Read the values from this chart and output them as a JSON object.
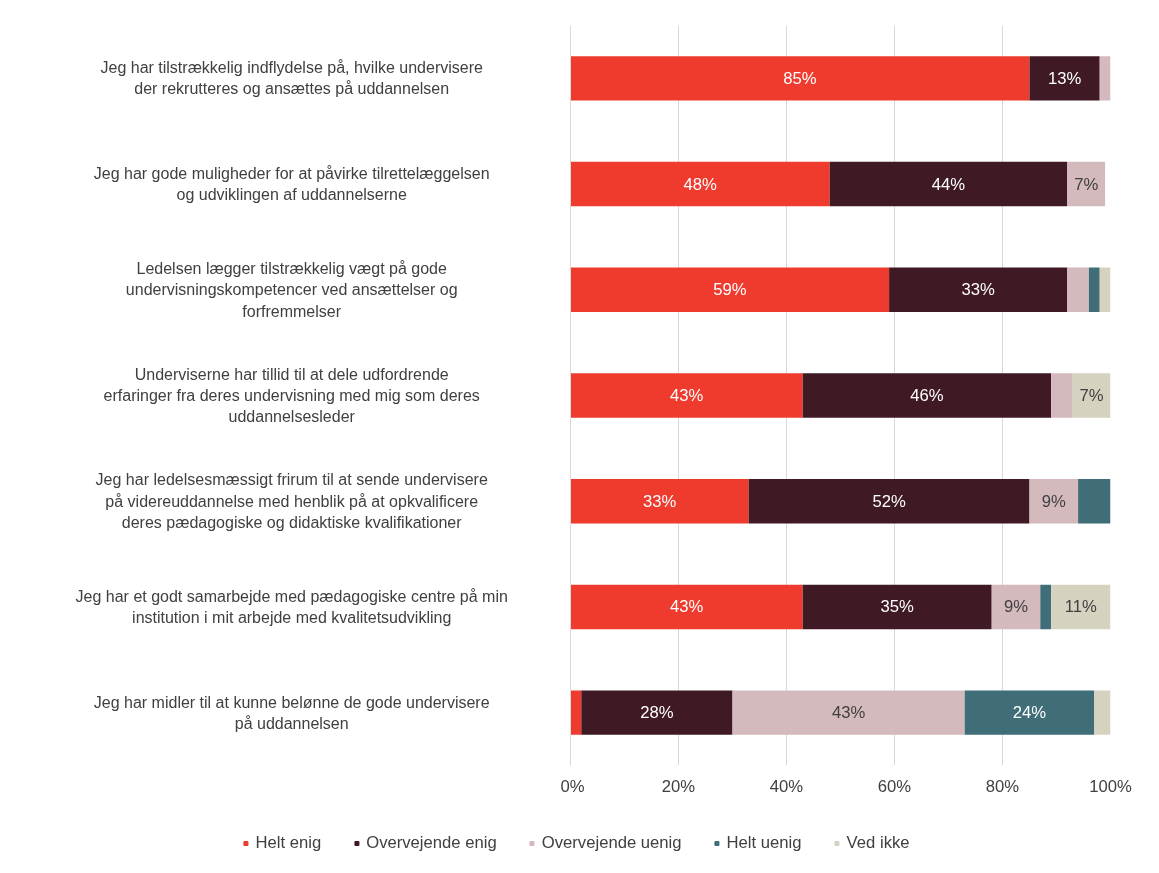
{
  "chart_data": {
    "type": "bar",
    "orientation": "horizontal",
    "stacked": true,
    "categories": [
      "Jeg har tilstrækkelig indflydelse på, hvilke undervisere der rekrutteres og ansættes på uddannelsen",
      "Jeg har gode muligheder for at påvirke tilrettelæggelsen og udviklingen af uddannelserne",
      "Ledelsen lægger tilstrækkelig vægt på gode undervisningskompetencer ved ansættelser og forfremmelser",
      "Underviserne har tillid til at dele udfordrende erfaringer fra deres undervisning med mig som deres uddannelsesleder",
      "Jeg har ledelsesmæssigt frirum til at sende undervisere på videreuddannelse med henblik på at opkvalificere deres pædagogiske og didaktiske kvalifikationer",
      "Jeg har et godt samarbejde med pædagogiske centre på min institution i mit arbejde med kvalitetsudvikling",
      "Jeg har midler til at kunne belønne de gode undervisere på uddannelsen"
    ],
    "series": [
      {
        "name": "Helt enig",
        "color": "#ee3b2e",
        "values": [
          85,
          48,
          59,
          43,
          33,
          43,
          2
        ],
        "value_labels": [
          "85%",
          "48%",
          "59%",
          "43%",
          "33%",
          "43%",
          null
        ]
      },
      {
        "name": "Overvejende enig",
        "color": "#3f1a24",
        "values": [
          13,
          44,
          33,
          46,
          52,
          35,
          28
        ],
        "value_labels": [
          "13%",
          "44%",
          "33%",
          "46%",
          "52%",
          "35%",
          "28%"
        ]
      },
      {
        "name": "Overvejende uenig",
        "color": "#d4b9bd",
        "values": [
          2,
          7,
          4,
          4,
          9,
          9,
          43
        ],
        "value_labels": [
          null,
          "7%",
          null,
          null,
          "9%",
          "9%",
          "43%"
        ]
      },
      {
        "name": "Helt uenig",
        "color": "#3f6e78",
        "values": [
          0,
          0,
          2,
          0,
          6,
          2,
          24
        ],
        "value_labels": [
          null,
          null,
          null,
          null,
          null,
          null,
          "24%"
        ]
      },
      {
        "name": "Ved ikke",
        "color": "#d5d2c0",
        "values": [
          0,
          0,
          2,
          7,
          0,
          11,
          3
        ],
        "value_labels": [
          null,
          null,
          null,
          "7%",
          null,
          "11%",
          null
        ]
      }
    ],
    "xlim": [
      0,
      100
    ],
    "xticks": [
      {
        "value": 0,
        "label": "0%"
      },
      {
        "value": 20,
        "label": "20%"
      },
      {
        "value": 40,
        "label": "40%"
      },
      {
        "value": 60,
        "label": "60%"
      },
      {
        "value": 80,
        "label": "80%"
      },
      {
        "value": 100,
        "label": "100%"
      }
    ],
    "grid": "x",
    "legend": "bottom"
  }
}
